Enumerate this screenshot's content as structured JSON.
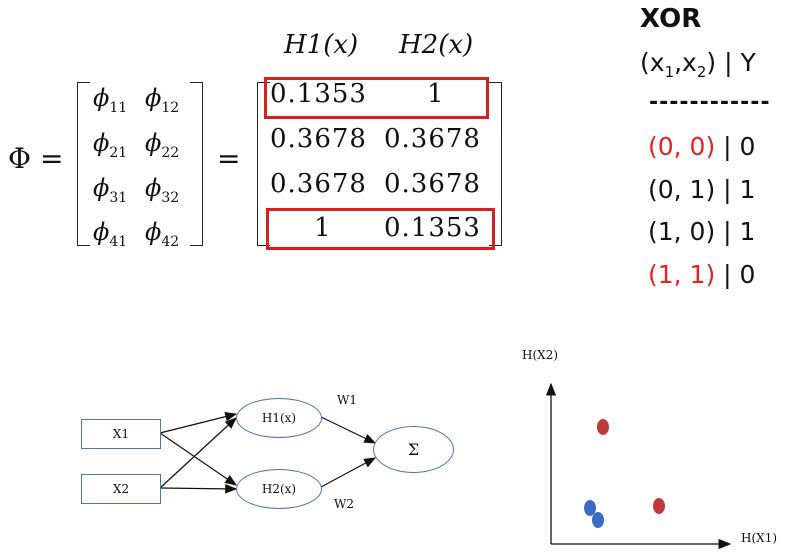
{
  "matrix": {
    "header_h1": "H1(x)",
    "header_h2": "H2(x)",
    "lhs_symbol": "Φ",
    "equals": "=",
    "phi_cells": [
      {
        "base": "ϕ",
        "sub": "11"
      },
      {
        "base": "ϕ",
        "sub": "12"
      },
      {
        "base": "ϕ",
        "sub": "21"
      },
      {
        "base": "ϕ",
        "sub": "22"
      },
      {
        "base": "ϕ",
        "sub": "31"
      },
      {
        "base": "ϕ",
        "sub": "32"
      },
      {
        "base": "ϕ",
        "sub": "41"
      },
      {
        "base": "ϕ",
        "sub": "42"
      }
    ],
    "values": [
      [
        "0.1353",
        "1"
      ],
      [
        "0.3678",
        "0.3678"
      ],
      [
        "0.3678",
        "0.3678"
      ],
      [
        "1",
        "0.1353"
      ]
    ],
    "highlight_color": "#d81e1e"
  },
  "xor_table": {
    "title": "XOR",
    "header_prefix": "(x",
    "header_sub1": "1",
    "header_mid": ",x",
    "header_sub2": "2",
    "header_suffix": ") | Y",
    "separator": "------------",
    "rows": [
      {
        "input": "(0, 0)",
        "sep": " | ",
        "output": "0",
        "highlighted": true
      },
      {
        "input": "(0, 1)",
        "sep": " | ",
        "output": "1",
        "highlighted": false
      },
      {
        "input": "(1, 0)",
        "sep": " | ",
        "output": "1",
        "highlighted": false
      },
      {
        "input": "(1, 1)",
        "sep": " | ",
        "output": "0",
        "highlighted": true
      }
    ],
    "highlight_color": "#e8211d"
  },
  "network": {
    "input1": "X1",
    "input2": "X2",
    "hidden1": "H1(x)",
    "hidden2": "H2(x)",
    "weight1": "W1",
    "weight2": "W2",
    "output": "Σ",
    "node_color": "#4a75b8"
  },
  "scatter": {
    "ylabel": "H(X2)",
    "xlabel": "H(X1)",
    "red_color": "#c0393b",
    "blue_color": "#3b6cc4"
  }
}
